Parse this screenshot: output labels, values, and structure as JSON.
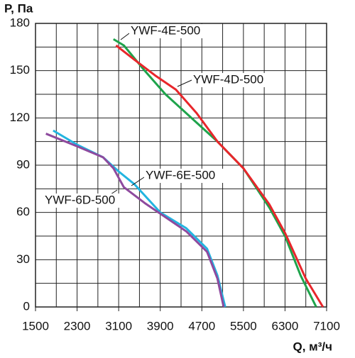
{
  "chart_data": {
    "type": "line",
    "y_label": "P, Па",
    "x_label": "Q, м³/ч",
    "xlim": [
      1500,
      7100
    ],
    "xticks": [
      1500,
      2300,
      3100,
      3900,
      4700,
      5500,
      6300,
      7100
    ],
    "xgrid": [
      1500,
      1900,
      2300,
      2700,
      3100,
      3500,
      3900,
      4300,
      4700,
      5100,
      5500,
      5900,
      6300,
      6700,
      7100
    ],
    "ylim": [
      0,
      180
    ],
    "yticks": [
      0,
      30,
      60,
      90,
      120,
      150,
      180
    ],
    "ygrid": [
      0,
      15,
      30,
      45,
      60,
      75,
      90,
      105,
      120,
      135,
      150,
      165,
      180
    ],
    "grid": true,
    "series": [
      {
        "name": "YWF-4E-500",
        "color": "#1ea34b",
        "x": [
          3000,
          3200,
          3600,
          4000,
          4500,
          5000,
          5500,
          6000,
          6300,
          6600,
          6900
        ],
        "values": [
          170,
          166,
          150,
          135,
          120,
          105,
          88,
          63,
          45,
          20,
          0
        ]
      },
      {
        "name": "YWF-4D-500",
        "color": "#e8262b",
        "x": [
          3050,
          3400,
          3800,
          4200,
          4600,
          5000,
          5500,
          6000,
          6300,
          6700,
          7030
        ],
        "values": [
          166,
          157,
          147,
          138,
          123,
          105,
          88,
          65,
          47,
          18,
          0
        ]
      },
      {
        "name": "YWF-6E-500",
        "color": "#22b4e0",
        "x": [
          1840,
          2300,
          2800,
          3100,
          3400,
          3900,
          4400,
          4800,
          5000,
          5150
        ],
        "values": [
          112,
          103,
          95,
          86,
          78,
          60,
          50,
          37,
          20,
          0
        ]
      },
      {
        "name": "YWF-6D-500",
        "color": "#8e4a9e",
        "x": [
          1700,
          2300,
          2800,
          3000,
          3200,
          3600,
          4000,
          4400,
          4800,
          5000,
          5120
        ],
        "values": [
          110,
          102,
          95,
          88,
          76,
          66,
          57,
          48,
          35,
          18,
          0
        ]
      }
    ]
  }
}
